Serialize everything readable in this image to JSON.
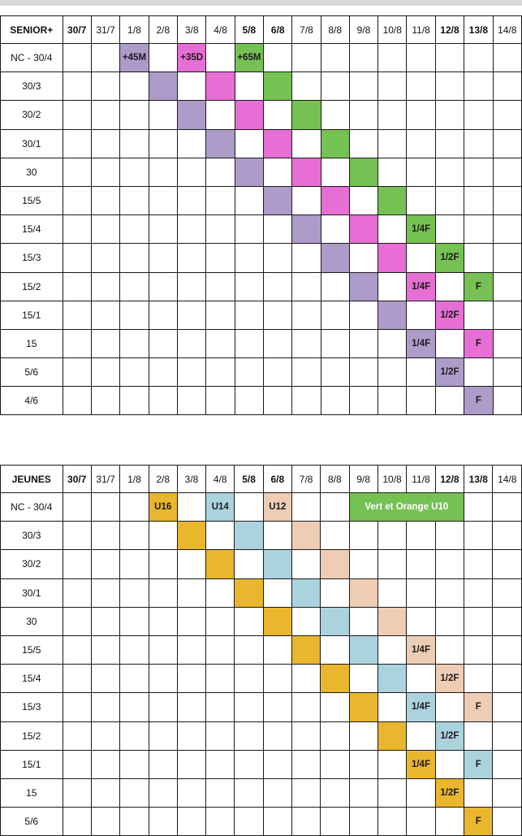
{
  "colors": {
    "purple": "#ad9bc9",
    "pink": "#e66ed4",
    "green": "#76c154",
    "orange": "#eab62d",
    "blue": "#abd3de",
    "peach": "#eecdb4"
  },
  "tables": [
    {
      "id": "senior",
      "title": "SENIOR+",
      "dates": [
        {
          "label": "30/7",
          "bold": true
        },
        {
          "label": "31/7",
          "bold": false
        },
        {
          "label": "1/8",
          "bold": false
        },
        {
          "label": "2/8",
          "bold": false
        },
        {
          "label": "3/8",
          "bold": false
        },
        {
          "label": "4/8",
          "bold": false
        },
        {
          "label": "5/8",
          "bold": true
        },
        {
          "label": "6/8",
          "bold": true
        },
        {
          "label": "7/8",
          "bold": false
        },
        {
          "label": "8/8",
          "bold": false
        },
        {
          "label": "9/8",
          "bold": false
        },
        {
          "label": "10/8",
          "bold": false
        },
        {
          "label": "11/8",
          "bold": false
        },
        {
          "label": "12/8",
          "bold": true
        },
        {
          "label": "13/8",
          "bold": true
        },
        {
          "label": "14/8",
          "bold": false
        }
      ],
      "rows": [
        {
          "label": "NC - 30/4",
          "cells": [
            {
              "col": 2,
              "color": "purple",
              "text": "+45M"
            },
            {
              "col": 4,
              "color": "pink",
              "text": "+35D"
            },
            {
              "col": 6,
              "color": "green",
              "text": "+65M"
            }
          ]
        },
        {
          "label": "30/3",
          "cells": [
            {
              "col": 3,
              "color": "purple",
              "text": ""
            },
            {
              "col": 5,
              "color": "pink",
              "text": ""
            },
            {
              "col": 7,
              "color": "green",
              "text": ""
            }
          ]
        },
        {
          "label": "30/2",
          "cells": [
            {
              "col": 4,
              "color": "purple",
              "text": ""
            },
            {
              "col": 6,
              "color": "pink",
              "text": ""
            },
            {
              "col": 8,
              "color": "green",
              "text": ""
            }
          ]
        },
        {
          "label": "30/1",
          "cells": [
            {
              "col": 5,
              "color": "purple",
              "text": ""
            },
            {
              "col": 7,
              "color": "pink",
              "text": ""
            },
            {
              "col": 9,
              "color": "green",
              "text": ""
            }
          ]
        },
        {
          "label": "30",
          "cells": [
            {
              "col": 6,
              "color": "purple",
              "text": ""
            },
            {
              "col": 8,
              "color": "pink",
              "text": ""
            },
            {
              "col": 10,
              "color": "green",
              "text": ""
            }
          ]
        },
        {
          "label": "15/5",
          "cells": [
            {
              "col": 7,
              "color": "purple",
              "text": ""
            },
            {
              "col": 9,
              "color": "pink",
              "text": ""
            },
            {
              "col": 11,
              "color": "green",
              "text": ""
            }
          ]
        },
        {
          "label": "15/4",
          "cells": [
            {
              "col": 8,
              "color": "purple",
              "text": ""
            },
            {
              "col": 10,
              "color": "pink",
              "text": ""
            },
            {
              "col": 12,
              "color": "green",
              "text": "1/4F"
            }
          ]
        },
        {
          "label": "15/3",
          "cells": [
            {
              "col": 9,
              "color": "purple",
              "text": ""
            },
            {
              "col": 11,
              "color": "pink",
              "text": ""
            },
            {
              "col": 13,
              "color": "green",
              "text": "1/2F"
            }
          ]
        },
        {
          "label": "15/2",
          "cells": [
            {
              "col": 10,
              "color": "purple",
              "text": ""
            },
            {
              "col": 12,
              "color": "pink",
              "text": "1/4F"
            },
            {
              "col": 14,
              "color": "green",
              "text": "F"
            }
          ]
        },
        {
          "label": "15/1",
          "cells": [
            {
              "col": 11,
              "color": "purple",
              "text": ""
            },
            {
              "col": 13,
              "color": "pink",
              "text": "1/2F"
            }
          ]
        },
        {
          "label": "15",
          "cells": [
            {
              "col": 12,
              "color": "purple",
              "text": "1/4F"
            },
            {
              "col": 14,
              "color": "pink",
              "text": "F"
            }
          ]
        },
        {
          "label": "5/6",
          "cells": [
            {
              "col": 13,
              "color": "purple",
              "text": "1/2F"
            }
          ]
        },
        {
          "label": "4/6",
          "cells": [
            {
              "col": 14,
              "color": "purple",
              "text": "F"
            }
          ]
        }
      ]
    },
    {
      "id": "jeunes",
      "title": "JEUNES",
      "dates": [
        {
          "label": "30/7",
          "bold": true
        },
        {
          "label": "31/7",
          "bold": false
        },
        {
          "label": "1/8",
          "bold": false
        },
        {
          "label": "2/8",
          "bold": false
        },
        {
          "label": "3/8",
          "bold": false
        },
        {
          "label": "4/8",
          "bold": false
        },
        {
          "label": "5/8",
          "bold": true
        },
        {
          "label": "6/8",
          "bold": true
        },
        {
          "label": "7/8",
          "bold": false
        },
        {
          "label": "8/8",
          "bold": false
        },
        {
          "label": "9/8",
          "bold": false
        },
        {
          "label": "10/8",
          "bold": false
        },
        {
          "label": "11/8",
          "bold": false
        },
        {
          "label": "12/8",
          "bold": true
        },
        {
          "label": "13/8",
          "bold": true
        },
        {
          "label": "14/8",
          "bold": false
        }
      ],
      "rows": [
        {
          "label": "NC - 30/4",
          "cells": [
            {
              "col": 3,
              "color": "orange",
              "text": "U16"
            },
            {
              "col": 5,
              "color": "blue",
              "text": "U14"
            },
            {
              "col": 7,
              "color": "peach",
              "text": "U12"
            },
            {
              "col": 10,
              "span": 4,
              "color": "green",
              "text": "Vert et Orange U10",
              "textColor": "light"
            }
          ]
        },
        {
          "label": "30/3",
          "cells": [
            {
              "col": 4,
              "color": "orange",
              "text": ""
            },
            {
              "col": 6,
              "color": "blue",
              "text": ""
            },
            {
              "col": 8,
              "color": "peach",
              "text": ""
            }
          ]
        },
        {
          "label": "30/2",
          "cells": [
            {
              "col": 5,
              "color": "orange",
              "text": ""
            },
            {
              "col": 7,
              "color": "blue",
              "text": ""
            },
            {
              "col": 9,
              "color": "peach",
              "text": ""
            }
          ]
        },
        {
          "label": "30/1",
          "cells": [
            {
              "col": 6,
              "color": "orange",
              "text": ""
            },
            {
              "col": 8,
              "color": "blue",
              "text": ""
            },
            {
              "col": 10,
              "color": "peach",
              "text": ""
            }
          ]
        },
        {
          "label": "30",
          "cells": [
            {
              "col": 7,
              "color": "orange",
              "text": ""
            },
            {
              "col": 9,
              "color": "blue",
              "text": ""
            },
            {
              "col": 11,
              "color": "peach",
              "text": ""
            }
          ]
        },
        {
          "label": "15/5",
          "cells": [
            {
              "col": 8,
              "color": "orange",
              "text": ""
            },
            {
              "col": 10,
              "color": "blue",
              "text": ""
            },
            {
              "col": 12,
              "color": "peach",
              "text": "1/4F"
            }
          ]
        },
        {
          "label": "15/4",
          "cells": [
            {
              "col": 9,
              "color": "orange",
              "text": ""
            },
            {
              "col": 11,
              "color": "blue",
              "text": ""
            },
            {
              "col": 13,
              "color": "peach",
              "text": "1/2F"
            }
          ]
        },
        {
          "label": "15/3",
          "cells": [
            {
              "col": 10,
              "color": "orange",
              "text": ""
            },
            {
              "col": 12,
              "color": "blue",
              "text": "1/4F"
            },
            {
              "col": 14,
              "color": "peach",
              "text": "F"
            }
          ]
        },
        {
          "label": "15/2",
          "cells": [
            {
              "col": 11,
              "color": "orange",
              "text": ""
            },
            {
              "col": 13,
              "color": "blue",
              "text": "1/2F"
            }
          ]
        },
        {
          "label": "15/1",
          "cells": [
            {
              "col": 12,
              "color": "orange",
              "text": "1/4F"
            },
            {
              "col": 14,
              "color": "blue",
              "text": "F"
            }
          ]
        },
        {
          "label": "15",
          "cells": [
            {
              "col": 13,
              "color": "orange",
              "text": "1/2F"
            }
          ]
        },
        {
          "label": "5/6",
          "cells": [
            {
              "col": 14,
              "color": "orange",
              "text": "F"
            }
          ]
        }
      ]
    }
  ]
}
